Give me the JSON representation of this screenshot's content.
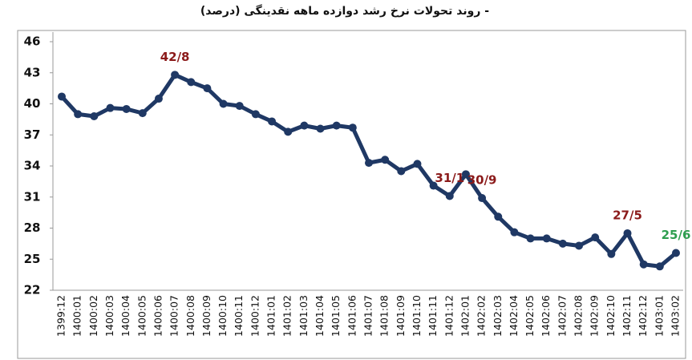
{
  "chart_data": {
    "type": "line",
    "title": "- روند تحولات نرخ رشد دوازده ماهه نقدینگی (درصد)",
    "categories": [
      "1399:12",
      "1400:01",
      "1400:02",
      "1400:03",
      "1400:04",
      "1400:05",
      "1400:06",
      "1400:07",
      "1400:08",
      "1400:09",
      "1400:10",
      "1400:11",
      "1400:12",
      "1401:01",
      "1401:02",
      "1401:03",
      "1401:04",
      "1401:05",
      "1401:06",
      "1401:07",
      "1401:08",
      "1401:09",
      "1401:10",
      "1401:11",
      "1401:12",
      "1402:01",
      "1402:02",
      "1402:03",
      "1402:04",
      "1402:05",
      "1402:06",
      "1402:07",
      "1402:08",
      "1402:09",
      "1402:10",
      "1402:11",
      "1402:12",
      "1403:01",
      "1403:02"
    ],
    "values": [
      40.7,
      39.0,
      38.8,
      39.6,
      39.5,
      39.1,
      40.5,
      42.8,
      42.1,
      41.5,
      40.0,
      39.8,
      39.0,
      38.3,
      37.3,
      37.9,
      37.6,
      37.9,
      37.7,
      34.3,
      34.6,
      33.5,
      34.2,
      32.1,
      31.1,
      33.2,
      30.9,
      29.1,
      27.6,
      27.0,
      27.0,
      26.5,
      26.3,
      27.1,
      25.5,
      27.5,
      24.5,
      24.3,
      25.6
    ],
    "value_labels": [
      null,
      null,
      null,
      null,
      null,
      null,
      null,
      "42/8",
      null,
      null,
      null,
      null,
      null,
      null,
      null,
      null,
      null,
      null,
      null,
      null,
      null,
      null,
      null,
      null,
      "31/1",
      null,
      "30/9",
      null,
      null,
      null,
      null,
      null,
      null,
      null,
      null,
      "27/5",
      null,
      null,
      "25/6"
    ],
    "value_label_colors": [
      null,
      null,
      null,
      null,
      null,
      null,
      null,
      "#8b1a1a",
      null,
      null,
      null,
      null,
      null,
      null,
      null,
      null,
      null,
      null,
      null,
      null,
      null,
      null,
      null,
      null,
      "#8b1a1a",
      null,
      "#8b1a1a",
      null,
      null,
      null,
      null,
      null,
      null,
      null,
      null,
      "#8b1a1a",
      null,
      null,
      "#2e9e4f"
    ],
    "color": "#1f3864",
    "ylim": [
      22,
      46
    ],
    "yticks": [
      22,
      25,
      28,
      31,
      34,
      37,
      40,
      43,
      46
    ]
  }
}
